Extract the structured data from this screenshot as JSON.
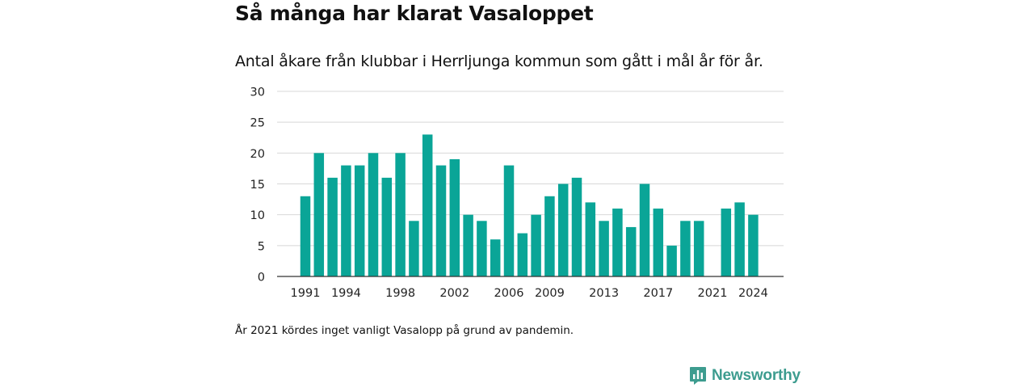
{
  "title": "Så många har klarat Vasaloppet",
  "subtitle": "Antal åkare från klubbar i Herrljunga kommun som gått i mål år för år.",
  "footnote": "År 2021 kördes inget vanligt Vasalopp på grund av pandemin.",
  "brand": {
    "name": "Newsworthy",
    "icon": "newsworthy-chart-bubble-icon",
    "color": "#3d9c8f"
  },
  "colors": {
    "bar": "#0aa597",
    "grid": "#d8d8d8",
    "axis": "#333333",
    "text": "#222222"
  },
  "chart_data": {
    "type": "bar",
    "categories": [
      "1991",
      "1992",
      "1993",
      "1994",
      "1995",
      "1996",
      "1997",
      "1998",
      "1999",
      "2000",
      "2001",
      "2002",
      "2003",
      "2004",
      "2005",
      "2006",
      "2007",
      "2008",
      "2009",
      "2010",
      "2011",
      "2012",
      "2013",
      "2014",
      "2015",
      "2016",
      "2017",
      "2018",
      "2019",
      "2020",
      "2021",
      "2022",
      "2023",
      "2024"
    ],
    "values": [
      13,
      20,
      16,
      18,
      18,
      20,
      16,
      20,
      9,
      23,
      18,
      19,
      10,
      9,
      6,
      18,
      7,
      10,
      13,
      15,
      16,
      12,
      9,
      11,
      8,
      15,
      11,
      5,
      9,
      9,
      null,
      11,
      12,
      10
    ],
    "x_tick_labels": [
      "1991",
      "1994",
      "1998",
      "2002",
      "2006",
      "2009",
      "2013",
      "2017",
      "2021",
      "2024"
    ],
    "y_ticks": [
      0,
      5,
      10,
      15,
      20,
      25,
      30
    ],
    "ylim": [
      0,
      30
    ],
    "grid": true,
    "legend": "none"
  }
}
